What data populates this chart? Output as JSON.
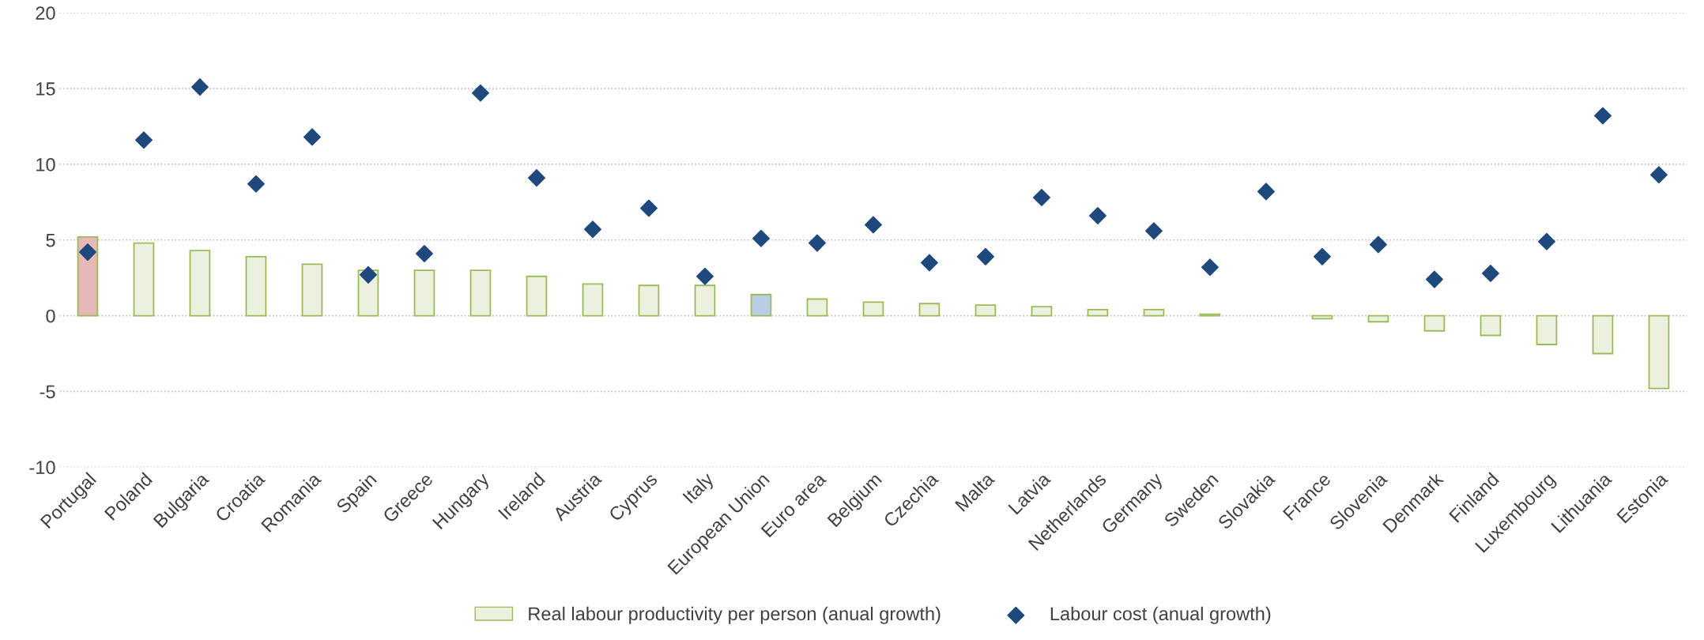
{
  "chart_data": {
    "type": "bar",
    "categories": [
      "Portugal",
      "Poland",
      "Bulgaria",
      "Croatia",
      "Romania",
      "Spain",
      "Greece",
      "Hungary",
      "Ireland",
      "Austria",
      "Cyprus",
      "Italy",
      "European Union",
      "Euro area",
      "Belgium",
      "Czechia",
      "Malta",
      "Latvia",
      "Netherlands",
      "Germany",
      "Sweden",
      "Slovakia",
      "France",
      "Slovenia",
      "Denmark",
      "Finland",
      "Luxembourg",
      "Lithuania",
      "Estonia"
    ],
    "series": [
      {
        "name": "Real labour productivity per person (anual growth)",
        "color": "#ebf1de",
        "colors": [
          "#e6b9b8",
          "#ebf1de",
          "#ebf1de",
          "#ebf1de",
          "#ebf1de",
          "#ebf1de",
          "#ebf1de",
          "#ebf1de",
          "#ebf1de",
          "#ebf1de",
          "#ebf1de",
          "#ebf1de",
          "#b9cde5",
          "#ebf1de",
          "#ebf1de",
          "#ebf1de",
          "#ebf1de",
          "#ebf1de",
          "#ebf1de",
          "#ebf1de",
          "#ebf1de",
          "#ebf1de",
          "#ebf1de",
          "#ebf1de",
          "#ebf1de",
          "#ebf1de",
          "#ebf1de",
          "#ebf1de",
          "#ebf1de"
        ],
        "values": [
          5.2,
          4.8,
          4.3,
          3.9,
          3.4,
          3.0,
          3.0,
          3.0,
          2.6,
          2.1,
          2.0,
          2.0,
          1.4,
          1.1,
          0.9,
          0.8,
          0.7,
          0.6,
          0.4,
          0.4,
          0.1,
          null,
          -0.2,
          -0.4,
          -1.0,
          -1.3,
          -1.9,
          -2.5,
          -4.8
        ]
      },
      {
        "name": "Labour cost (anual growth)",
        "type": "scatter",
        "marker": "diamond",
        "color": "#1f497d",
        "values": [
          4.2,
          11.6,
          15.1,
          8.7,
          11.8,
          2.7,
          4.1,
          14.7,
          9.1,
          5.7,
          7.1,
          2.6,
          5.1,
          4.8,
          6.0,
          3.5,
          3.9,
          7.8,
          6.6,
          5.6,
          3.2,
          8.2,
          3.9,
          4.7,
          2.4,
          2.8,
          4.9,
          13.2,
          9.3
        ]
      }
    ],
    "ylim": [
      -10,
      20
    ],
    "yticks": [
      {
        "value": -10,
        "label": "-10"
      },
      {
        "value": -5,
        "label": "-5"
      },
      0,
      5,
      10,
      15,
      20
    ],
    "grid": "y",
    "legend": "bottom"
  }
}
